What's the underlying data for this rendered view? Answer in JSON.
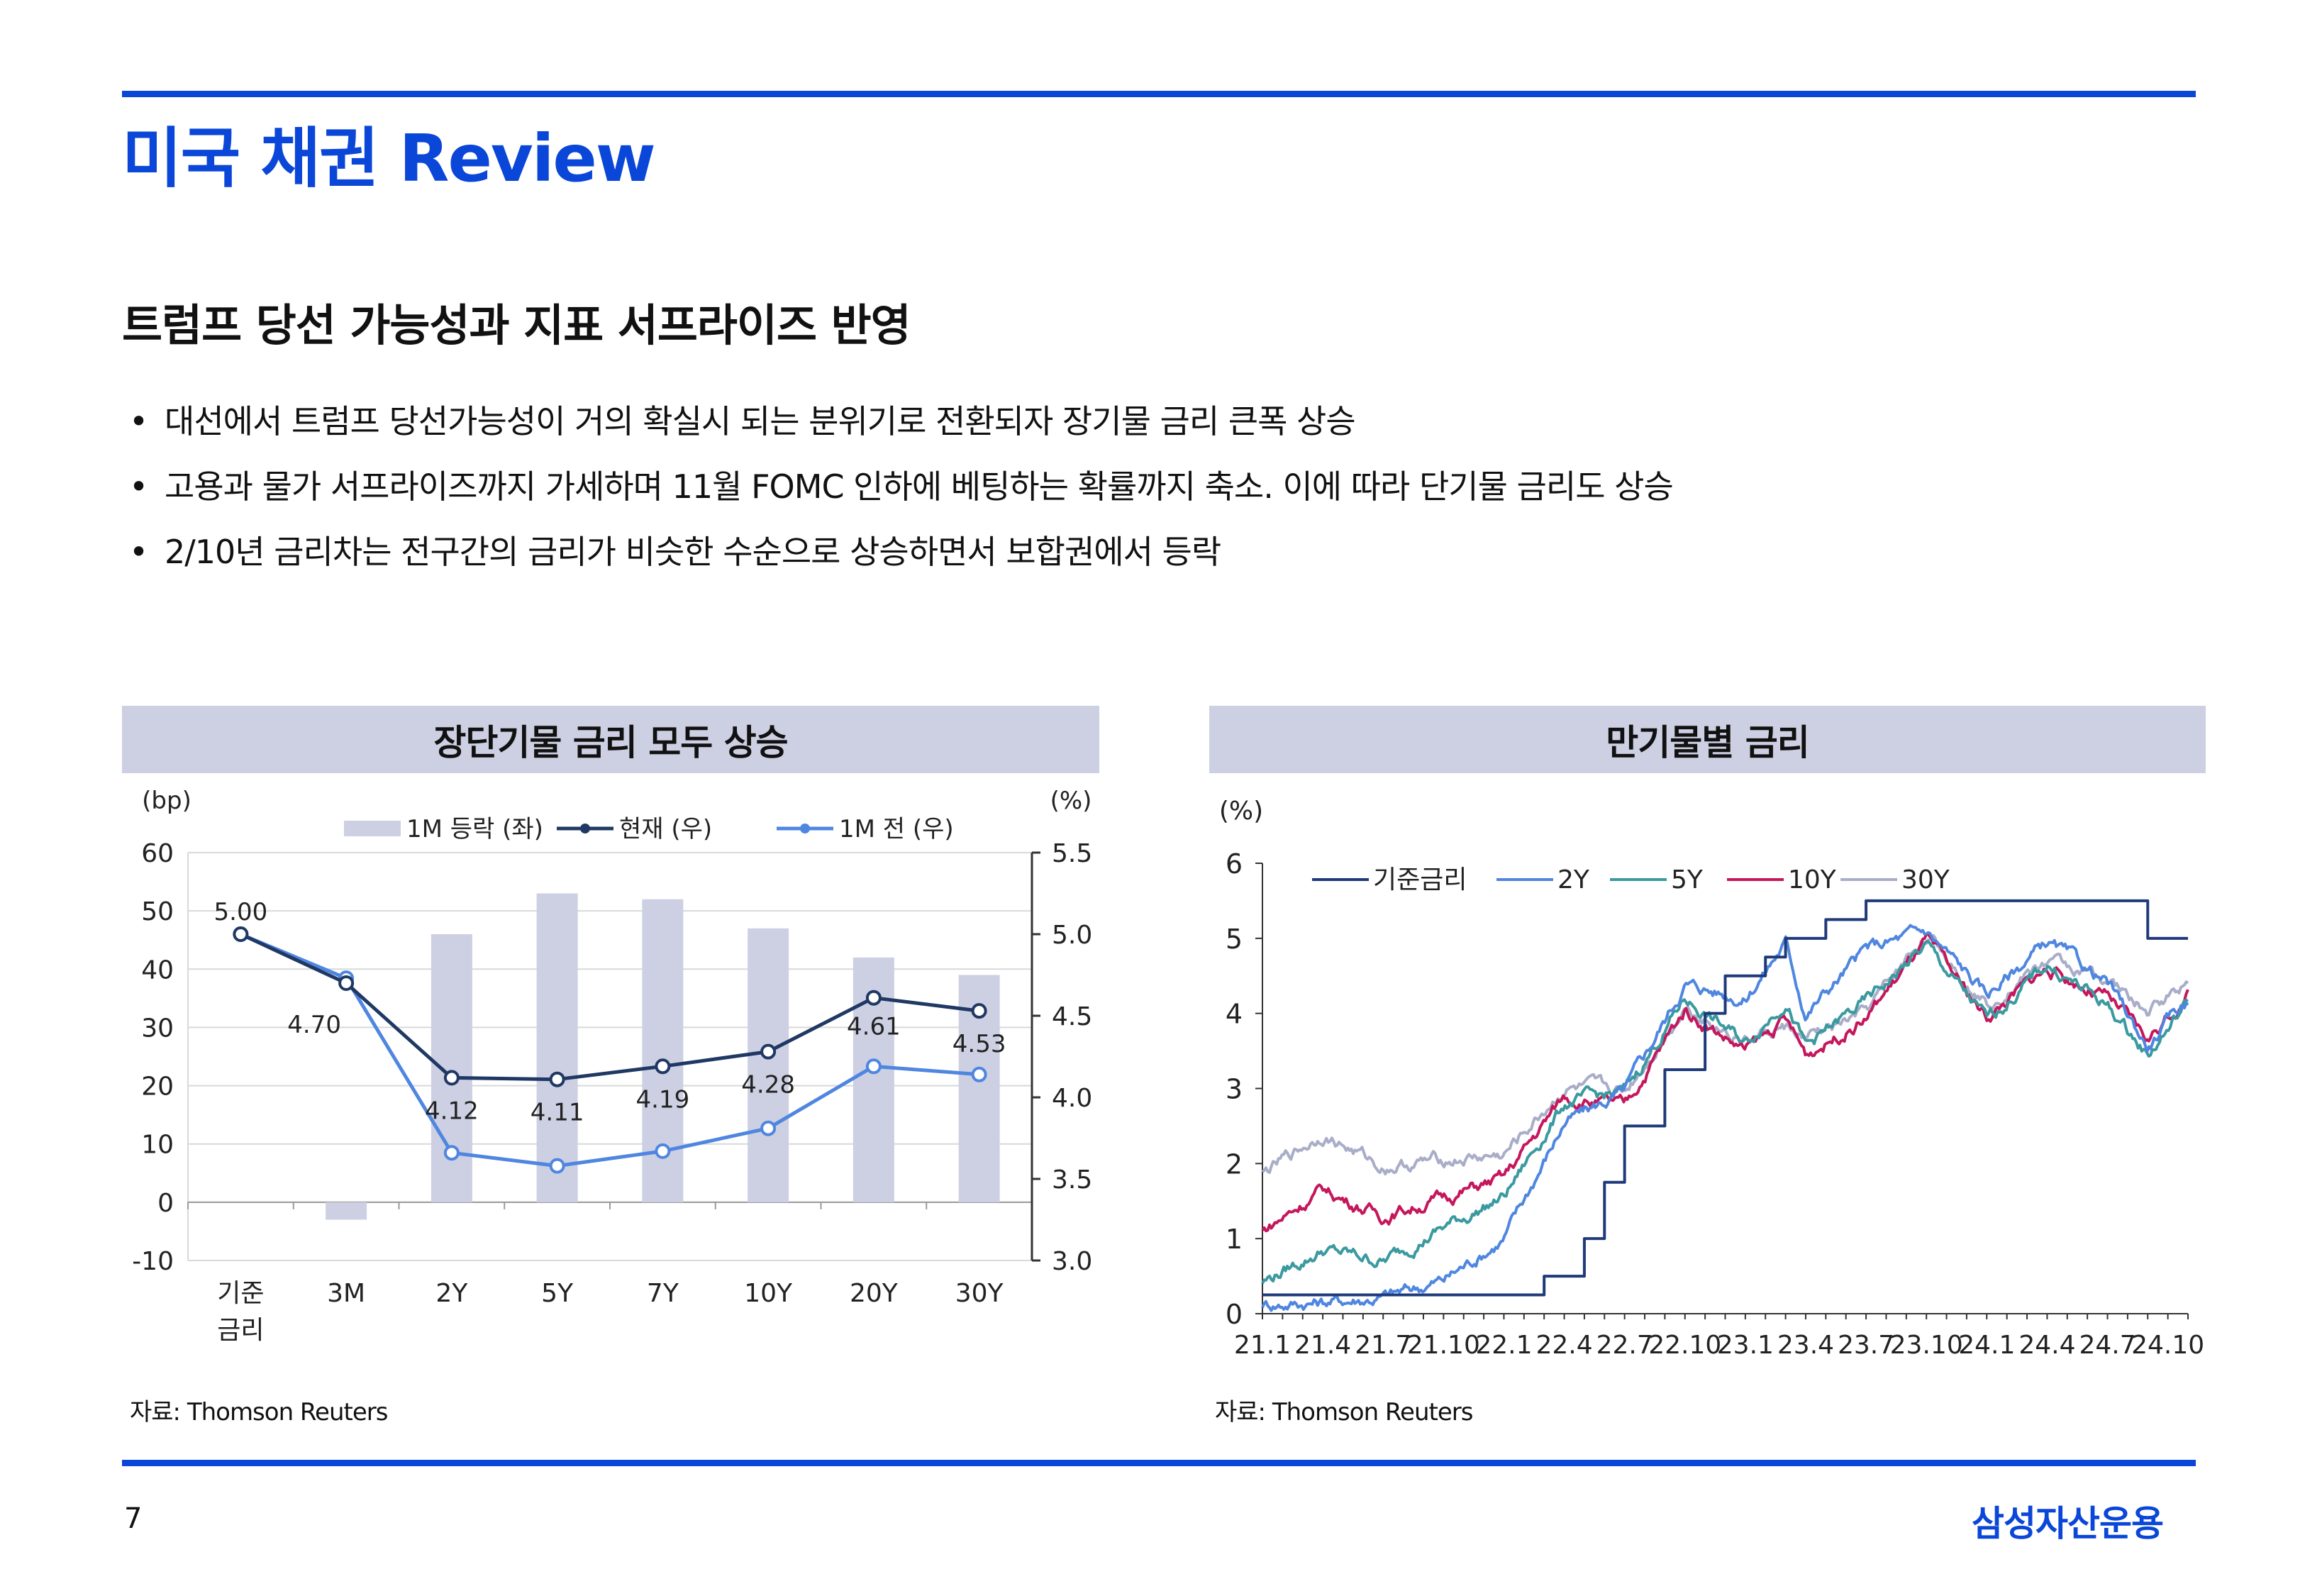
{
  "header": {
    "title": "미국 채권 Review"
  },
  "section": {
    "subtitle": "트럼프 당선 가능성과 지표 서프라이즈 반영",
    "bullets": [
      "대선에서 트럼프 당선가능성이 거의 확실시 되는 분위기로 전환되자 장기물 금리 큰폭 상승",
      "고용과 물가 서프라이즈까지 가세하며 11월 FOMC 인하에 베팅하는 확률까지 축소. 이에 따라 단기물 금리도 상승",
      "2/10년 금리차는 전구간의 금리가 비슷한 수순으로 상승하면서 보합권에서 등락"
    ],
    "bullet_glyph": "•"
  },
  "left_panel": {
    "heading": "장단기물 금리 모두 상승",
    "source": "자료: Thomson Reuters"
  },
  "right_panel": {
    "heading": "만기물별 금리",
    "source": "자료: Thomson Reuters"
  },
  "footer": {
    "page_number": "7",
    "brand": "삼성자산운용"
  },
  "colors": {
    "accent": "#0a46d8",
    "panel_bg": "#cdd0e3",
    "bar": "#cdd0e3",
    "current": "#1f3864",
    "prev": "#4f86e0",
    "base": "#1f3a7a",
    "y2": "#4f86e0",
    "y5": "#3a9aa0",
    "y10": "#c4175c",
    "y30": "#a9adc8"
  },
  "chart_data": [
    {
      "type": "bar",
      "categories": [
        "기준\n금리",
        "3M",
        "2Y",
        "5Y",
        "7Y",
        "10Y",
        "20Y",
        "30Y"
      ],
      "left_unit": "(bp)",
      "right_unit": "(%)",
      "ylim_left": [
        -10,
        60
      ],
      "yticks_left": [
        "-10",
        "0",
        "10",
        "20",
        "30",
        "40",
        "50",
        "60"
      ],
      "ylim_right": [
        3.0,
        5.5
      ],
      "yticks_right": [
        "3.0",
        "3.5",
        "4.0",
        "4.5",
        "5.0",
        "5.5"
      ],
      "series": [
        {
          "name": "1M 등락 (좌)",
          "type": "bar",
          "axis": "left",
          "values": [
            0,
            -3,
            46,
            53,
            52,
            47,
            42,
            39
          ]
        },
        {
          "name": "현재 (우)",
          "type": "line",
          "axis": "right",
          "values": [
            5.0,
            4.7,
            4.12,
            4.11,
            4.19,
            4.28,
            4.61,
            4.53
          ]
        },
        {
          "name": "1M 전 (우)",
          "type": "line",
          "axis": "right",
          "values": [
            5.0,
            4.73,
            3.66,
            3.58,
            3.67,
            3.81,
            4.19,
            4.14
          ]
        }
      ],
      "data_labels": [
        "5.00",
        "4.70",
        "4.12",
        "4.11",
        "4.19",
        "4.28",
        "4.61",
        "4.53"
      ],
      "grid": "horizontal",
      "legend": "top"
    },
    {
      "type": "line",
      "y_unit": "(%)",
      "ylim": [
        0,
        6
      ],
      "yticks": [
        "0",
        "1",
        "2",
        "3",
        "4",
        "5",
        "6"
      ],
      "x_ticks": [
        "21.1",
        "21.4",
        "21.7",
        "21.10",
        "22.1",
        "22.4",
        "22.7",
        "22.10",
        "23.1",
        "23.4",
        "23.7",
        "23.10",
        "24.1",
        "24.4",
        "24.7",
        "24.10"
      ],
      "x_start": "2021-01",
      "x_end": "2024-11",
      "legend": "top",
      "series": [
        {
          "name": "기준금리",
          "style": "step",
          "points": [
            [
              "2021-01",
              0.25
            ],
            [
              "2022-03",
              0.5
            ],
            [
              "2022-05",
              1.0
            ],
            [
              "2022-06",
              1.75
            ],
            [
              "2022-07",
              2.5
            ],
            [
              "2022-09",
              3.25
            ],
            [
              "2022-11",
              4.0
            ],
            [
              "2022-12",
              4.5
            ],
            [
              "2023-02",
              4.75
            ],
            [
              "2023-03",
              5.0
            ],
            [
              "2023-05",
              5.25
            ],
            [
              "2023-07",
              5.5
            ],
            [
              "2024-09",
              5.0
            ],
            [
              "2024-11",
              5.0
            ]
          ]
        },
        {
          "name": "2Y",
          "points": [
            [
              "2021-01",
              0.13
            ],
            [
              "2021-04",
              0.16
            ],
            [
              "2021-07",
              0.22
            ],
            [
              "2021-10",
              0.45
            ],
            [
              "2022-01",
              1.0
            ],
            [
              "2022-04",
              2.55
            ],
            [
              "2022-07",
              2.95
            ],
            [
              "2022-10",
              4.4
            ],
            [
              "2023-01",
              4.2
            ],
            [
              "2023-03",
              4.95
            ],
            [
              "2023-04",
              4.0
            ],
            [
              "2023-07",
              4.85
            ],
            [
              "2023-10",
              5.1
            ],
            [
              "2024-01",
              4.25
            ],
            [
              "2024-04",
              4.95
            ],
            [
              "2024-07",
              4.4
            ],
            [
              "2024-09",
              3.55
            ],
            [
              "2024-11",
              4.2
            ]
          ]
        },
        {
          "name": "5Y",
          "points": [
            [
              "2021-01",
              0.42
            ],
            [
              "2021-04",
              0.85
            ],
            [
              "2021-07",
              0.7
            ],
            [
              "2021-10",
              1.15
            ],
            [
              "2022-01",
              1.55
            ],
            [
              "2022-04",
              2.8
            ],
            [
              "2022-07",
              2.95
            ],
            [
              "2022-10",
              4.2
            ],
            [
              "2023-01",
              3.6
            ],
            [
              "2023-03",
              4.2
            ],
            [
              "2023-04",
              3.55
            ],
            [
              "2023-07",
              4.15
            ],
            [
              "2023-10",
              4.9
            ],
            [
              "2024-01",
              3.9
            ],
            [
              "2024-04",
              4.65
            ],
            [
              "2024-07",
              4.1
            ],
            [
              "2024-09",
              3.45
            ],
            [
              "2024-11",
              4.15
            ]
          ]
        },
        {
          "name": "10Y",
          "points": [
            [
              "2021-01",
              1.1
            ],
            [
              "2021-04",
              1.65
            ],
            [
              "2021-07",
              1.3
            ],
            [
              "2021-10",
              1.55
            ],
            [
              "2022-01",
              1.8
            ],
            [
              "2022-04",
              2.9
            ],
            [
              "2022-07",
              2.75
            ],
            [
              "2022-10",
              4.05
            ],
            [
              "2023-01",
              3.5
            ],
            [
              "2023-03",
              3.9
            ],
            [
              "2023-04",
              3.45
            ],
            [
              "2023-07",
              3.95
            ],
            [
              "2023-10",
              4.95
            ],
            [
              "2024-01",
              3.95
            ],
            [
              "2024-04",
              4.6
            ],
            [
              "2024-07",
              4.2
            ],
            [
              "2024-09",
              3.65
            ],
            [
              "2024-11",
              4.25
            ]
          ]
        },
        {
          "name": "30Y",
          "points": [
            [
              "2021-01",
              1.85
            ],
            [
              "2021-04",
              2.4
            ],
            [
              "2021-07",
              1.95
            ],
            [
              "2021-10",
              2.05
            ],
            [
              "2022-01",
              2.1
            ],
            [
              "2022-04",
              3.0
            ],
            [
              "2022-07",
              2.95
            ],
            [
              "2022-10",
              4.1
            ],
            [
              "2023-01",
              3.65
            ],
            [
              "2023-03",
              3.8
            ],
            [
              "2023-04",
              3.65
            ],
            [
              "2023-07",
              4.0
            ],
            [
              "2023-10",
              5.05
            ],
            [
              "2024-01",
              4.15
            ],
            [
              "2024-04",
              4.7
            ],
            [
              "2024-07",
              4.45
            ],
            [
              "2024-09",
              4.0
            ],
            [
              "2024-11",
              4.45
            ]
          ]
        }
      ]
    }
  ]
}
